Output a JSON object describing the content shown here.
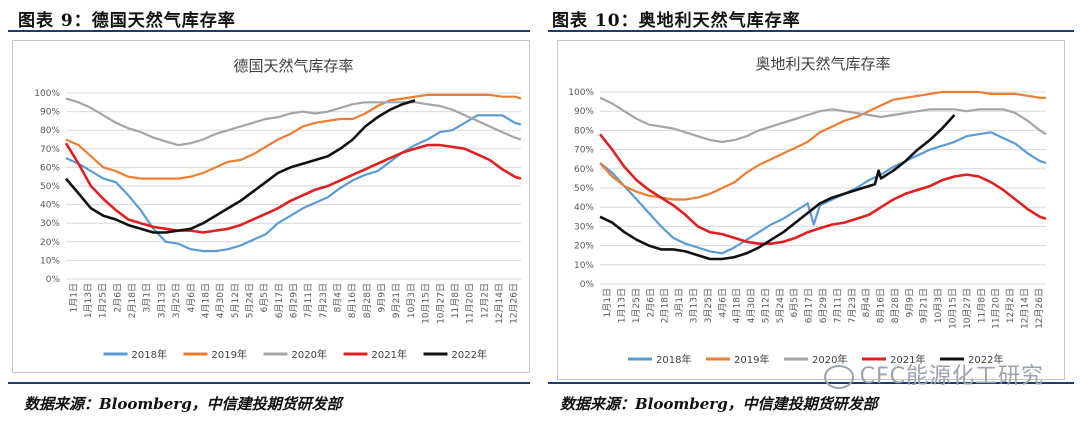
{
  "figures": [
    {
      "caption": "图表 9：德国天然气库存率",
      "source": "数据来源：Bloomberg，中信建投期货研发部",
      "chart_data": {
        "type": "line",
        "title": "德国天然气库存率",
        "x_ticks": [
          "1月1日",
          "1月13日",
          "1月25日",
          "2月6日",
          "2月18日",
          "3月1日",
          "3月13日",
          "3月25日",
          "4月6日",
          "4月18日",
          "4月30日",
          "5月12日",
          "5月24日",
          "6月5日",
          "6月17日",
          "6月29日",
          "7月11日",
          "7月23日",
          "8月4日",
          "8月16日",
          "8月28日",
          "9月9日",
          "9月21日",
          "10月3日",
          "10月15日",
          "10月27日",
          "11月8日",
          "11月20日",
          "12月2日",
          "12月14日",
          "12月26日"
        ],
        "y_ticks": [
          "0%",
          "10%",
          "20%",
          "30%",
          "40%",
          "50%",
          "60%",
          "70%",
          "80%",
          "90%",
          "100%"
        ],
        "ylim": [
          0,
          100
        ],
        "xlim": [
          0,
          365
        ],
        "legend_position": "bottom",
        "grid": true,
        "series": [
          {
            "name": "2018年",
            "color": "#5b9bd5",
            "x": [
              0,
              10,
              20,
              30,
              40,
              50,
              60,
              70,
              80,
              90,
              100,
              110,
              120,
              130,
              140,
              150,
              160,
              170,
              180,
              190,
              200,
              210,
              220,
              230,
              240,
              250,
              260,
              270,
              280,
              290,
              300,
              310,
              320,
              330,
              340,
              350,
              360,
              365
            ],
            "y": [
              65,
              62,
              58,
              54,
              52,
              45,
              37,
              27,
              20,
              19,
              16,
              15,
              15,
              16,
              18,
              21,
              24,
              30,
              34,
              38,
              41,
              44,
              49,
              53,
              56,
              58,
              63,
              68,
              72,
              75,
              79,
              80,
              84,
              88,
              88,
              88,
              84,
              83
            ]
          },
          {
            "name": "2019年",
            "color": "#ed7d31",
            "x": [
              0,
              10,
              20,
              30,
              40,
              50,
              60,
              70,
              80,
              90,
              100,
              110,
              120,
              130,
              140,
              150,
              160,
              170,
              180,
              190,
              200,
              210,
              220,
              230,
              240,
              250,
              260,
              270,
              280,
              290,
              300,
              310,
              320,
              330,
              340,
              350,
              360,
              365
            ],
            "y": [
              75,
              72,
              66,
              60,
              58,
              55,
              54,
              54,
              54,
              54,
              55,
              57,
              60,
              63,
              64,
              67,
              71,
              75,
              78,
              82,
              84,
              85,
              86,
              86,
              89,
              93,
              96,
              97,
              98,
              99,
              99,
              99,
              99,
              99,
              99,
              98,
              98,
              97
            ]
          },
          {
            "name": "2020年",
            "color": "#a5a5a5",
            "x": [
              0,
              10,
              20,
              30,
              40,
              50,
              60,
              70,
              80,
              90,
              100,
              110,
              120,
              130,
              140,
              150,
              160,
              170,
              180,
              190,
              200,
              210,
              220,
              230,
              240,
              250,
              260,
              270,
              280,
              290,
              300,
              310,
              320,
              330,
              340,
              350,
              360,
              365
            ],
            "y": [
              97,
              95,
              92,
              88,
              84,
              81,
              79,
              76,
              74,
              72,
              73,
              75,
              78,
              80,
              82,
              84,
              86,
              87,
              89,
              90,
              89,
              90,
              92,
              94,
              95,
              95,
              95,
              95,
              95,
              94,
              93,
              91,
              88,
              85,
              82,
              79,
              76,
              75
            ]
          },
          {
            "name": "2021年",
            "color": "#e02020",
            "x": [
              0,
              10,
              20,
              30,
              40,
              50,
              60,
              70,
              80,
              90,
              100,
              110,
              120,
              130,
              140,
              150,
              160,
              170,
              180,
              190,
              200,
              210,
              220,
              230,
              240,
              250,
              260,
              270,
              280,
              290,
              300,
              310,
              320,
              330,
              340,
              350,
              360,
              365
            ],
            "y": [
              73,
              62,
              50,
              43,
              37,
              32,
              30,
              28,
              27,
              26,
              26,
              25,
              26,
              27,
              29,
              32,
              35,
              38,
              42,
              45,
              48,
              50,
              53,
              56,
              59,
              62,
              65,
              68,
              70,
              72,
              72,
              71,
              70,
              67,
              64,
              59,
              55,
              54
            ]
          },
          {
            "name": "2022年",
            "color": "#111111",
            "x": [
              0,
              10,
              20,
              30,
              40,
              50,
              60,
              70,
              80,
              90,
              100,
              110,
              120,
              130,
              140,
              150,
              160,
              170,
              180,
              190,
              200,
              210,
              220,
              230,
              240,
              250,
              260,
              270,
              280
            ],
            "y": [
              54,
              46,
              38,
              34,
              32,
              29,
              27,
              25,
              25,
              26,
              27,
              30,
              34,
              38,
              42,
              47,
              52,
              57,
              60,
              62,
              64,
              66,
              70,
              75,
              82,
              87,
              91,
              94,
              96
            ]
          }
        ]
      }
    },
    {
      "caption": "图表 10：奥地利天然气库存率",
      "source": "数据来源：Bloomberg，中信建投期货研发部",
      "chart_data": {
        "type": "line",
        "title": "奥地利天然气库存率",
        "x_ticks": [
          "1月1日",
          "1月13日",
          "1月25日",
          "2月6日",
          "2月18日",
          "3月1日",
          "3月13日",
          "3月25日",
          "4月6日",
          "4月18日",
          "4月30日",
          "5月12日",
          "5月24日",
          "6月5日",
          "6月17日",
          "6月29日",
          "7月11日",
          "7月23日",
          "8月4日",
          "8月16日",
          "8月28日",
          "9月9日",
          "9月21日",
          "10月3日",
          "10月15日",
          "10月27日",
          "11月8日",
          "11月20日",
          "12月2日",
          "12月14日",
          "12月26日"
        ],
        "y_ticks": [
          "0%",
          "10%",
          "20%",
          "30%",
          "40%",
          "50%",
          "60%",
          "70%",
          "80%",
          "90%",
          "100%"
        ],
        "ylim": [
          0,
          100
        ],
        "xlim": [
          0,
          365
        ],
        "legend_position": "bottom",
        "grid": true,
        "series": [
          {
            "name": "2018年",
            "color": "#5b9bd5",
            "x": [
              0,
              10,
              20,
              30,
              40,
              50,
              60,
              70,
              80,
              90,
              100,
              110,
              120,
              130,
              140,
              150,
              160,
              170,
              175,
              180,
              190,
              200,
              210,
              220,
              230,
              240,
              250,
              260,
              270,
              280,
              290,
              300,
              310,
              320,
              330,
              340,
              350,
              360,
              365
            ],
            "y": [
              63,
              58,
              51,
              44,
              37,
              30,
              24,
              21,
              19,
              17,
              16,
              19,
              23,
              27,
              31,
              34,
              38,
              42,
              31,
              41,
              44,
              47,
              50,
              54,
              57,
              61,
              64,
              67,
              70,
              72,
              74,
              77,
              78,
              79,
              76,
              73,
              68,
              64,
              63
            ]
          },
          {
            "name": "2019年",
            "color": "#ed7d31",
            "x": [
              0,
              10,
              20,
              30,
              40,
              50,
              60,
              70,
              80,
              90,
              100,
              110,
              120,
              130,
              140,
              150,
              160,
              170,
              180,
              190,
              200,
              210,
              220,
              230,
              240,
              250,
              260,
              270,
              280,
              290,
              300,
              310,
              320,
              330,
              340,
              350,
              360,
              365
            ],
            "y": [
              63,
              56,
              51,
              48,
              46,
              45,
              44,
              44,
              45,
              47,
              50,
              53,
              58,
              62,
              65,
              68,
              71,
              74,
              79,
              82,
              85,
              87,
              90,
              93,
              96,
              97,
              98,
              99,
              100,
              100,
              100,
              100,
              99,
              99,
              99,
              98,
              97,
              97
            ]
          },
          {
            "name": "2020年",
            "color": "#a5a5a5",
            "x": [
              0,
              10,
              20,
              30,
              40,
              50,
              60,
              70,
              80,
              90,
              100,
              110,
              120,
              130,
              140,
              150,
              160,
              170,
              180,
              190,
              200,
              210,
              220,
              230,
              240,
              250,
              260,
              270,
              280,
              290,
              300,
              310,
              320,
              330,
              340,
              350,
              360,
              365
            ],
            "y": [
              97,
              94,
              90,
              86,
              83,
              82,
              81,
              79,
              77,
              75,
              74,
              75,
              77,
              80,
              82,
              84,
              86,
              88,
              90,
              91,
              90,
              89,
              88,
              87,
              88,
              89,
              90,
              91,
              91,
              91,
              90,
              91,
              91,
              91,
              89,
              85,
              80,
              78
            ]
          },
          {
            "name": "2021年",
            "color": "#e02020",
            "x": [
              0,
              10,
              20,
              30,
              40,
              50,
              60,
              70,
              80,
              90,
              100,
              110,
              120,
              130,
              140,
              150,
              160,
              170,
              180,
              190,
              200,
              210,
              220,
              230,
              240,
              250,
              260,
              270,
              280,
              290,
              300,
              310,
              320,
              330,
              340,
              350,
              360,
              365
            ],
            "y": [
              78,
              70,
              61,
              54,
              49,
              45,
              41,
              36,
              30,
              27,
              26,
              24,
              22,
              21,
              21,
              22,
              24,
              27,
              29,
              31,
              32,
              34,
              36,
              40,
              44,
              47,
              49,
              51,
              54,
              56,
              57,
              56,
              53,
              49,
              44,
              39,
              35,
              34
            ]
          },
          {
            "name": "2022年",
            "color": "#111111",
            "x": [
              0,
              10,
              20,
              30,
              40,
              50,
              60,
              70,
              80,
              90,
              100,
              110,
              120,
              130,
              140,
              150,
              160,
              170,
              180,
              190,
              200,
              210,
              220,
              225,
              228,
              230,
              240,
              250,
              260,
              270,
              280,
              290
            ],
            "y": [
              35,
              32,
              27,
              23,
              20,
              18,
              18,
              17,
              15,
              13,
              13,
              14,
              16,
              19,
              23,
              27,
              32,
              37,
              42,
              45,
              47,
              49,
              51,
              52,
              59,
              55,
              59,
              64,
              70,
              75,
              81,
              88
            ]
          }
        ]
      }
    }
  ],
  "watermark": "CFC能源化工研究"
}
